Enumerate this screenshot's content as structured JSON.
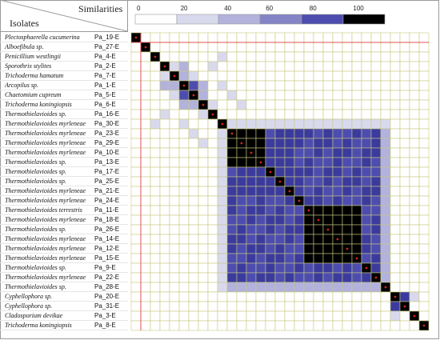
{
  "header": {
    "isolates_label": "Isolates",
    "similarities_label": "Similarities"
  },
  "legend": {
    "ticks": [
      "0",
      "20",
      "40",
      "60",
      "80",
      "100"
    ],
    "colors": [
      "#ffffff",
      "#d9d9ee",
      "#b2b2dc",
      "#8484c6",
      "#4d4db0",
      "#000000"
    ]
  },
  "colors": {
    "grid": "#c7c983",
    "diagonal": "#000000",
    "diag_marker": "#d42323",
    "edge_line": "#e05050"
  },
  "chart_data": {
    "type": "heatmap",
    "title": "",
    "xlabel": "",
    "ylabel": "",
    "color_scale": [
      0,
      100
    ],
    "rows": [
      {
        "name": "Plectosphaerella cucumerina",
        "code": "Pa_19-E"
      },
      {
        "name": "Alboefibula sp.",
        "code": "Pa_27-E"
      },
      {
        "name": "Penicillium westlingii",
        "code": "Pa_4-E"
      },
      {
        "name": "Sporothrix stylites",
        "code": "Pa_2-E"
      },
      {
        "name": "Trichoderma hamatum",
        "code": "Pa_7-E"
      },
      {
        "name": "Arcopilus sp.",
        "code": "Pa_1-E"
      },
      {
        "name": "Chaetomium cupreum",
        "code": "Pa_5-E"
      },
      {
        "name": "Trichoderma koningiopsis",
        "code": "Pa_6-E"
      },
      {
        "name": "Thermothielavioides sp.",
        "code": "Pa_16-E"
      },
      {
        "name": "Thermothielavioides myrleneae",
        "code": "Pa_30-E"
      },
      {
        "name": "Thermothielavioides myrleneae",
        "code": "Pa_23-E"
      },
      {
        "name": "Thermothielavioides myrleneae",
        "code": "Pa_29-E"
      },
      {
        "name": "Thermothielavioides myrleneae",
        "code": "Pa_10-E"
      },
      {
        "name": "Thermothielavioides sp.",
        "code": "Pa_13-E"
      },
      {
        "name": "Thermothielavioides sp.",
        "code": "Pa_17-E"
      },
      {
        "name": "Thermothielavioides sp.",
        "code": "Pa_25-E"
      },
      {
        "name": "Thermothielavioides myrleneae",
        "code": "Pa_21-E"
      },
      {
        "name": "Thermothielavioides myrleneae",
        "code": "Pa_24-E"
      },
      {
        "name": "Thermothielavioides terrestris",
        "code": "Pa_11-E"
      },
      {
        "name": "Thermothielavioides myrleneae",
        "code": "Pa_18-E"
      },
      {
        "name": "Thermothielavioides sp.",
        "code": "Pa_26-E"
      },
      {
        "name": "Thermothielavioides myrleneae",
        "code": "Pa_14-E"
      },
      {
        "name": "Thermothielavioides myrleneae",
        "code": "Pa_12-E"
      },
      {
        "name": "Thermothielavioides myrleneae",
        "code": "Pa_15-E"
      },
      {
        "name": "Thermothielavioides sp.",
        "code": "Pa_9-E"
      },
      {
        "name": "Thermothielavioides myrleneae",
        "code": "Pa_22-E"
      },
      {
        "name": "Thermothielavioides sp.",
        "code": "Pa_28-E"
      },
      {
        "name": "Cyphellophora sp.",
        "code": "Pa_20-E"
      },
      {
        "name": "Cyphellophora sp.",
        "code": "Pa_31-E"
      },
      {
        "name": "Cladosporium devikae",
        "code": "Pa_3-E"
      },
      {
        "name": "Trichoderma koningiopsis",
        "code": "Pa_8-E"
      }
    ],
    "cluster": {
      "start": 9,
      "end": 26,
      "high": [
        [
          10,
          13
        ],
        [
          18,
          23
        ]
      ]
    },
    "extra_cells": [
      [
        27,
        28,
        85
      ],
      [
        28,
        27,
        85
      ],
      [
        27,
        29,
        20
      ],
      [
        29,
        27,
        20
      ],
      [
        3,
        4,
        25
      ],
      [
        4,
        3,
        25
      ],
      [
        3,
        5,
        30
      ],
      [
        5,
        3,
        30
      ],
      [
        4,
        5,
        30
      ],
      [
        5,
        4,
        30
      ],
      [
        4,
        6,
        20
      ],
      [
        6,
        4,
        20
      ],
      [
        5,
        6,
        70
      ],
      [
        6,
        5,
        70
      ],
      [
        5,
        7,
        30
      ],
      [
        7,
        5,
        30
      ],
      [
        6,
        7,
        40
      ],
      [
        7,
        6,
        40
      ],
      [
        7,
        8,
        25
      ],
      [
        8,
        7,
        25
      ],
      [
        3,
        8,
        15
      ],
      [
        8,
        3,
        15
      ],
      [
        2,
        9,
        10
      ],
      [
        9,
        2,
        10
      ],
      [
        5,
        9,
        20
      ],
      [
        9,
        5,
        20
      ],
      [
        6,
        10,
        15
      ],
      [
        10,
        6,
        15
      ],
      [
        7,
        11,
        15
      ],
      [
        11,
        7,
        15
      ]
    ]
  }
}
